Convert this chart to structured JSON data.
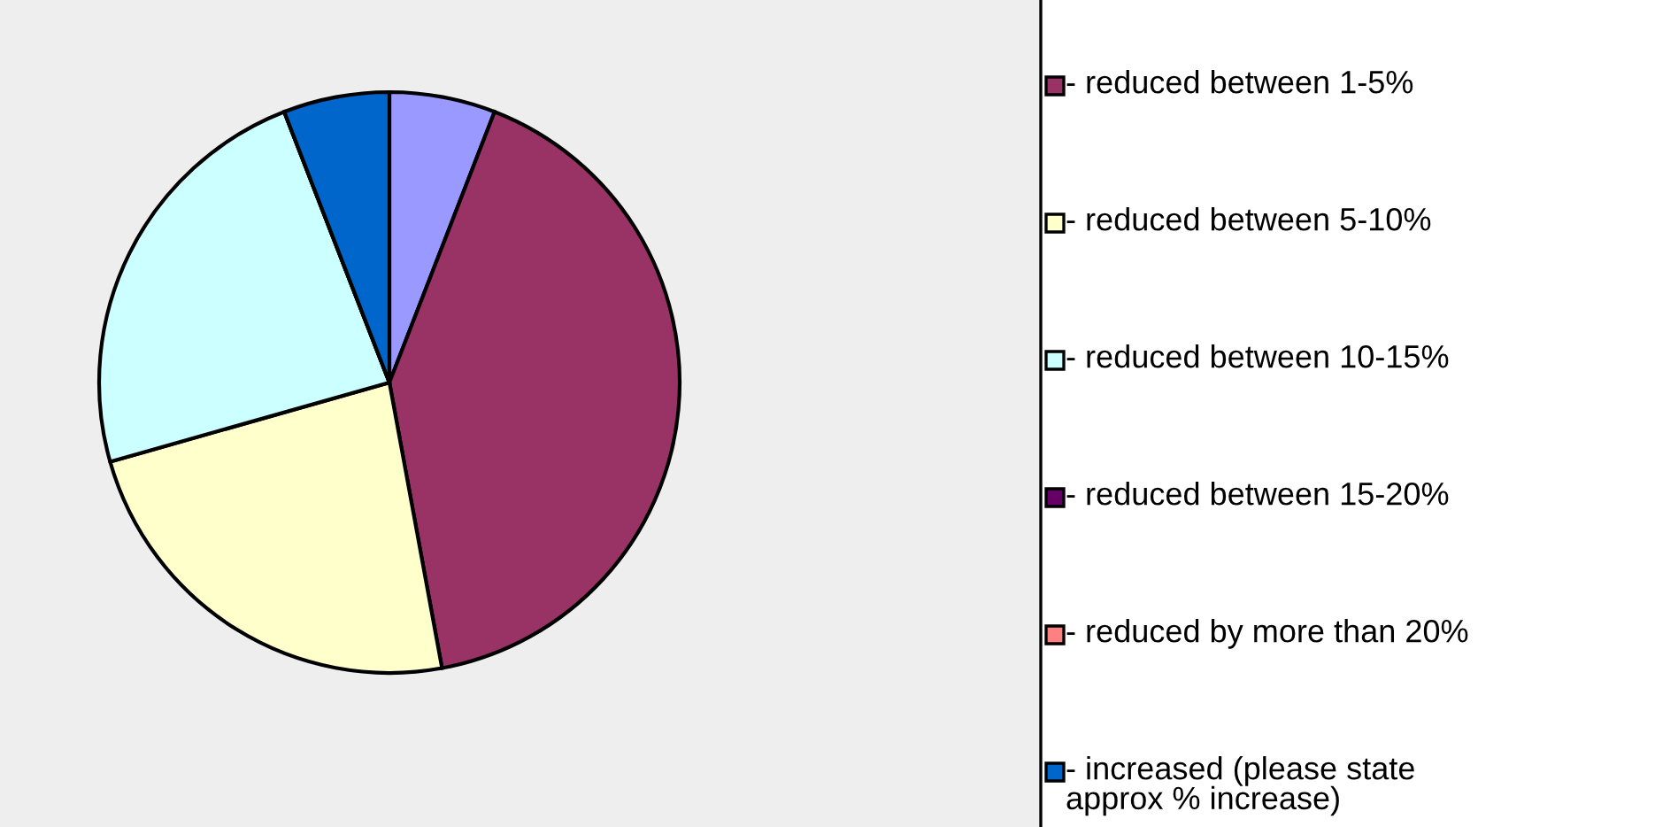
{
  "chart_data": {
    "type": "pie",
    "categories": [
      null,
      "- reduced between 1-5%",
      "- reduced between 5-10%",
      "- reduced between 10-15%",
      "- reduced between 15-20%",
      "- reduced by more than 20%",
      "- increased (please state\napprox % increase)"
    ],
    "values": [
      5.9,
      41.2,
      23.5,
      23.5,
      0,
      0,
      5.9
    ],
    "colors": [
      "#9999ff",
      "#993366",
      "#ffffcc",
      "#ccffff",
      "#660066",
      "#ff8080",
      "#0066cc"
    ],
    "legend": "right"
  }
}
